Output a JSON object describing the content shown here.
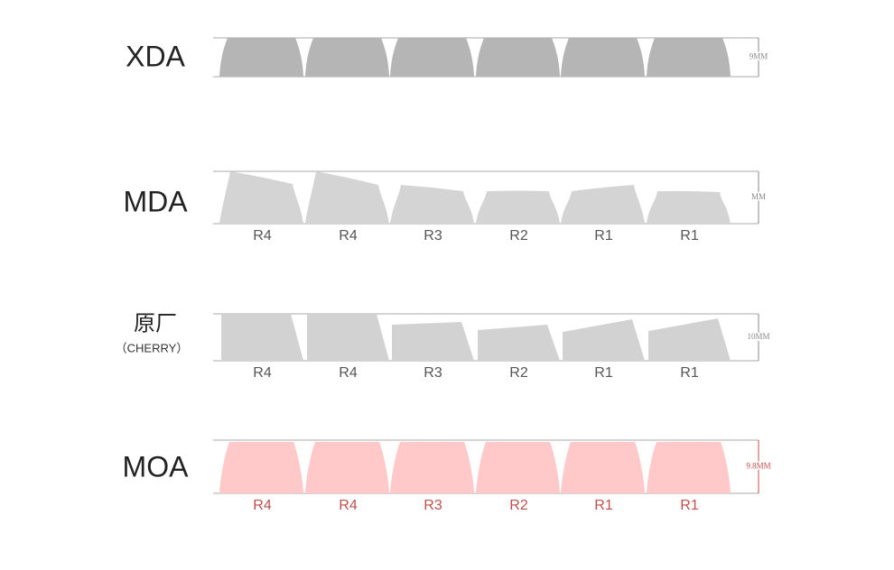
{
  "profiles": [
    {
      "name": "XDA",
      "height": "9MM"
    },
    {
      "name": "MDA",
      "height": "MM",
      "keys": [
        "R4",
        "R4",
        "R3",
        "R2",
        "R1",
        "R1"
      ]
    },
    {
      "name": "原厂",
      "subname": "（CHERRY）",
      "height": "10MM",
      "keys": [
        "R4",
        "R4",
        "R3",
        "R2",
        "R1",
        "R1"
      ]
    },
    {
      "name": "MOA",
      "height": "9.8MM",
      "keys": [
        "R4",
        "R4",
        "R3",
        "R2",
        "R1",
        "R1"
      ]
    }
  ]
}
